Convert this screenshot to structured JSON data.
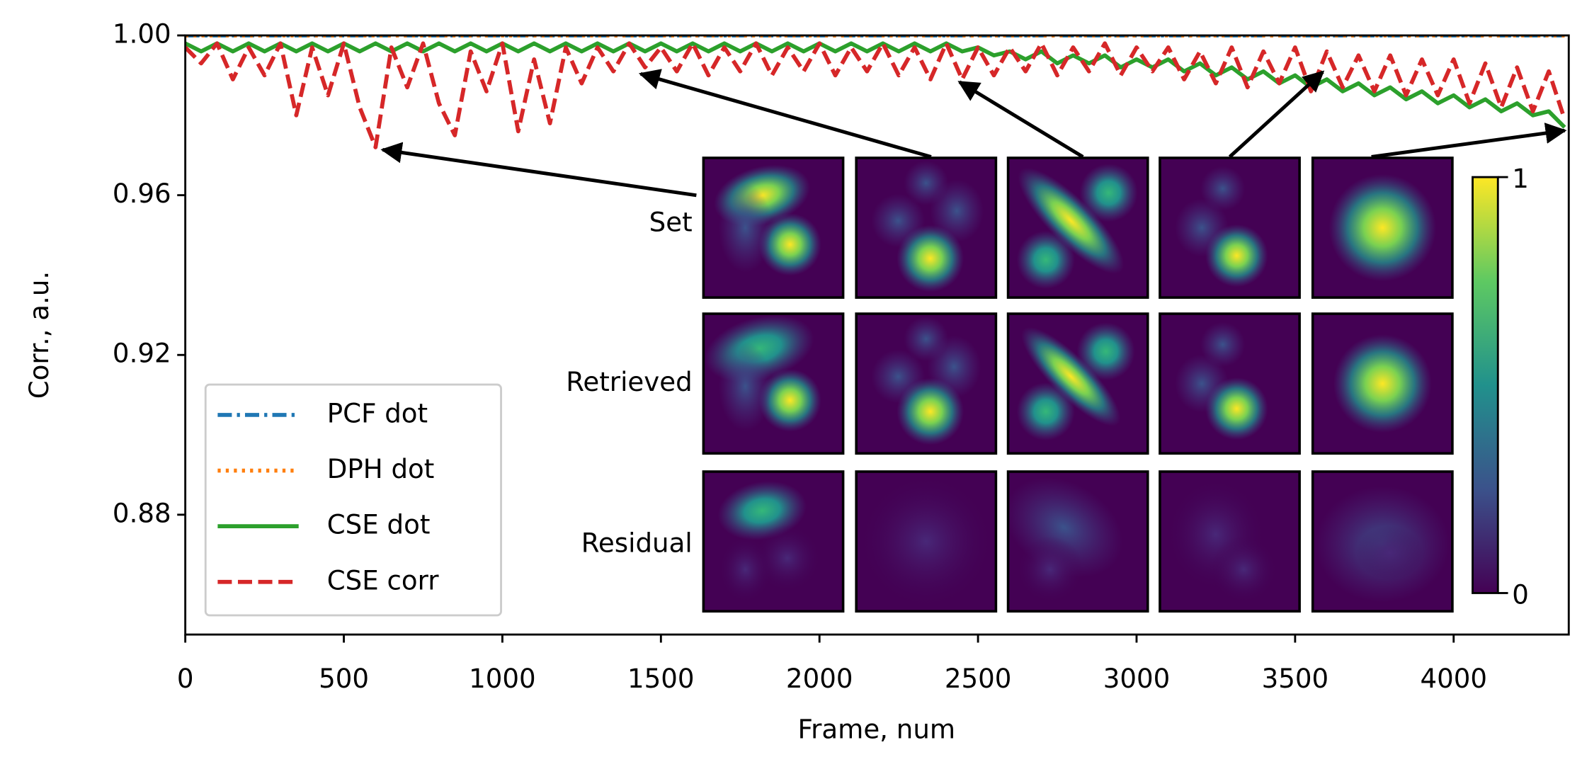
{
  "chart_data": {
    "type": "line",
    "x_label": "Frame, num",
    "y_label": "Corr., a.u.",
    "x": [
      0,
      50,
      100,
      150,
      200,
      250,
      300,
      350,
      400,
      450,
      500,
      550,
      600,
      650,
      700,
      750,
      800,
      850,
      900,
      950,
      1000,
      1050,
      1100,
      1150,
      1200,
      1250,
      1300,
      1350,
      1400,
      1450,
      1500,
      1550,
      1600,
      1650,
      1700,
      1750,
      1800,
      1850,
      1900,
      1950,
      2000,
      2050,
      2100,
      2150,
      2200,
      2250,
      2300,
      2350,
      2400,
      2450,
      2500,
      2550,
      2600,
      2650,
      2700,
      2750,
      2800,
      2850,
      2900,
      2950,
      3000,
      3050,
      3100,
      3150,
      3200,
      3250,
      3300,
      3350,
      3400,
      3450,
      3500,
      3550,
      3600,
      3650,
      3700,
      3750,
      3800,
      3850,
      3900,
      3950,
      4000,
      4050,
      4100,
      4150,
      4200,
      4250,
      4300,
      4350
    ],
    "series": [
      {
        "name": "PCF dot",
        "color": "#1f77b4",
        "dash": "dashdot",
        "values": [
          1,
          1,
          1,
          1,
          1,
          1,
          1,
          1,
          1,
          1,
          1,
          1,
          1,
          1,
          1,
          1,
          1,
          1,
          1,
          1,
          1,
          1,
          1,
          1,
          1,
          1,
          1,
          1,
          1,
          1,
          1,
          1,
          1,
          1,
          1,
          1,
          1,
          1,
          1,
          1,
          1,
          1,
          1,
          1,
          1,
          1,
          1,
          1,
          1,
          1,
          1,
          1,
          1,
          1,
          1,
          1,
          1,
          1,
          1,
          1,
          1,
          1,
          1,
          1,
          1,
          1,
          1,
          1,
          1,
          1,
          1,
          1,
          1,
          1,
          1,
          1,
          1,
          1,
          1,
          1,
          1,
          1,
          1,
          1,
          1,
          1,
          1,
          1
        ]
      },
      {
        "name": "DPH dot",
        "color": "#ff7f0e",
        "dash": "dotted",
        "values": [
          1,
          1,
          1,
          1,
          1,
          1,
          1,
          1,
          1,
          1,
          1,
          1,
          1,
          1,
          1,
          1,
          1,
          1,
          1,
          1,
          1,
          1,
          1,
          1,
          1,
          1,
          1,
          1,
          1,
          1,
          1,
          1,
          1,
          1,
          1,
          1,
          1,
          1,
          1,
          1,
          1,
          1,
          1,
          1,
          1,
          1,
          1,
          1,
          1,
          1,
          1,
          1,
          1,
          1,
          1,
          1,
          1,
          1,
          1,
          1,
          1,
          1,
          1,
          1,
          1,
          1,
          1,
          1,
          1,
          1,
          1,
          1,
          1,
          1,
          1,
          1,
          1,
          1,
          1,
          1,
          1,
          1,
          1,
          1,
          1,
          1,
          1,
          1
        ]
      },
      {
        "name": "CSE dot",
        "color": "#2ca02c",
        "dash": "solid",
        "values": [
          0.998,
          0.996,
          0.998,
          0.996,
          0.998,
          0.996,
          0.998,
          0.996,
          0.998,
          0.996,
          0.998,
          0.996,
          0.998,
          0.996,
          0.998,
          0.996,
          0.998,
          0.996,
          0.998,
          0.996,
          0.998,
          0.996,
          0.998,
          0.996,
          0.998,
          0.996,
          0.998,
          0.996,
          0.998,
          0.996,
          0.998,
          0.996,
          0.998,
          0.996,
          0.998,
          0.996,
          0.998,
          0.996,
          0.998,
          0.996,
          0.998,
          0.996,
          0.998,
          0.996,
          0.998,
          0.996,
          0.998,
          0.996,
          0.998,
          0.996,
          0.997,
          0.995,
          0.996,
          0.994,
          0.996,
          0.993,
          0.995,
          0.993,
          0.995,
          0.992,
          0.994,
          0.992,
          0.994,
          0.991,
          0.993,
          0.99,
          0.992,
          0.989,
          0.991,
          0.988,
          0.99,
          0.987,
          0.989,
          0.986,
          0.988,
          0.985,
          0.987,
          0.984,
          0.986,
          0.983,
          0.985,
          0.982,
          0.984,
          0.981,
          0.983,
          0.98,
          0.981,
          0.977
        ]
      },
      {
        "name": "CSE corr",
        "color": "#d62728",
        "dash": "dashed",
        "values": [
          0.997,
          0.993,
          0.998,
          0.989,
          0.997,
          0.99,
          0.998,
          0.98,
          0.997,
          0.985,
          0.998,
          0.982,
          0.972,
          0.997,
          0.987,
          0.998,
          0.983,
          0.975,
          0.996,
          0.986,
          0.998,
          0.976,
          0.994,
          0.978,
          0.997,
          0.988,
          0.997,
          0.991,
          0.998,
          0.992,
          0.997,
          0.991,
          0.998,
          0.99,
          0.997,
          0.991,
          0.998,
          0.99,
          0.997,
          0.991,
          0.998,
          0.99,
          0.997,
          0.991,
          0.998,
          0.99,
          0.997,
          0.989,
          0.998,
          0.989,
          0.997,
          0.99,
          0.997,
          0.991,
          0.998,
          0.99,
          0.997,
          0.991,
          0.998,
          0.99,
          0.997,
          0.991,
          0.997,
          0.989,
          0.996,
          0.988,
          0.997,
          0.987,
          0.996,
          0.988,
          0.997,
          0.986,
          0.996,
          0.987,
          0.995,
          0.986,
          0.995,
          0.985,
          0.994,
          0.985,
          0.994,
          0.983,
          0.993,
          0.982,
          0.992,
          0.981,
          0.991,
          0.979
        ]
      }
    ],
    "xlim": [
      0,
      4363
    ],
    "ylim": [
      0.85,
      1.0
    ],
    "xticks": [
      0,
      500,
      1000,
      1500,
      2000,
      2500,
      3000,
      3500,
      4000
    ],
    "yticks": [
      0.88,
      0.92,
      0.96,
      {
        "value": 1.0,
        "label": "1.00"
      }
    ],
    "legend": "lower left",
    "inset": {
      "row_labels": [
        "Set",
        "Retrieved",
        "Residual"
      ],
      "colorbar_ticks": [
        0,
        1
      ]
    }
  }
}
